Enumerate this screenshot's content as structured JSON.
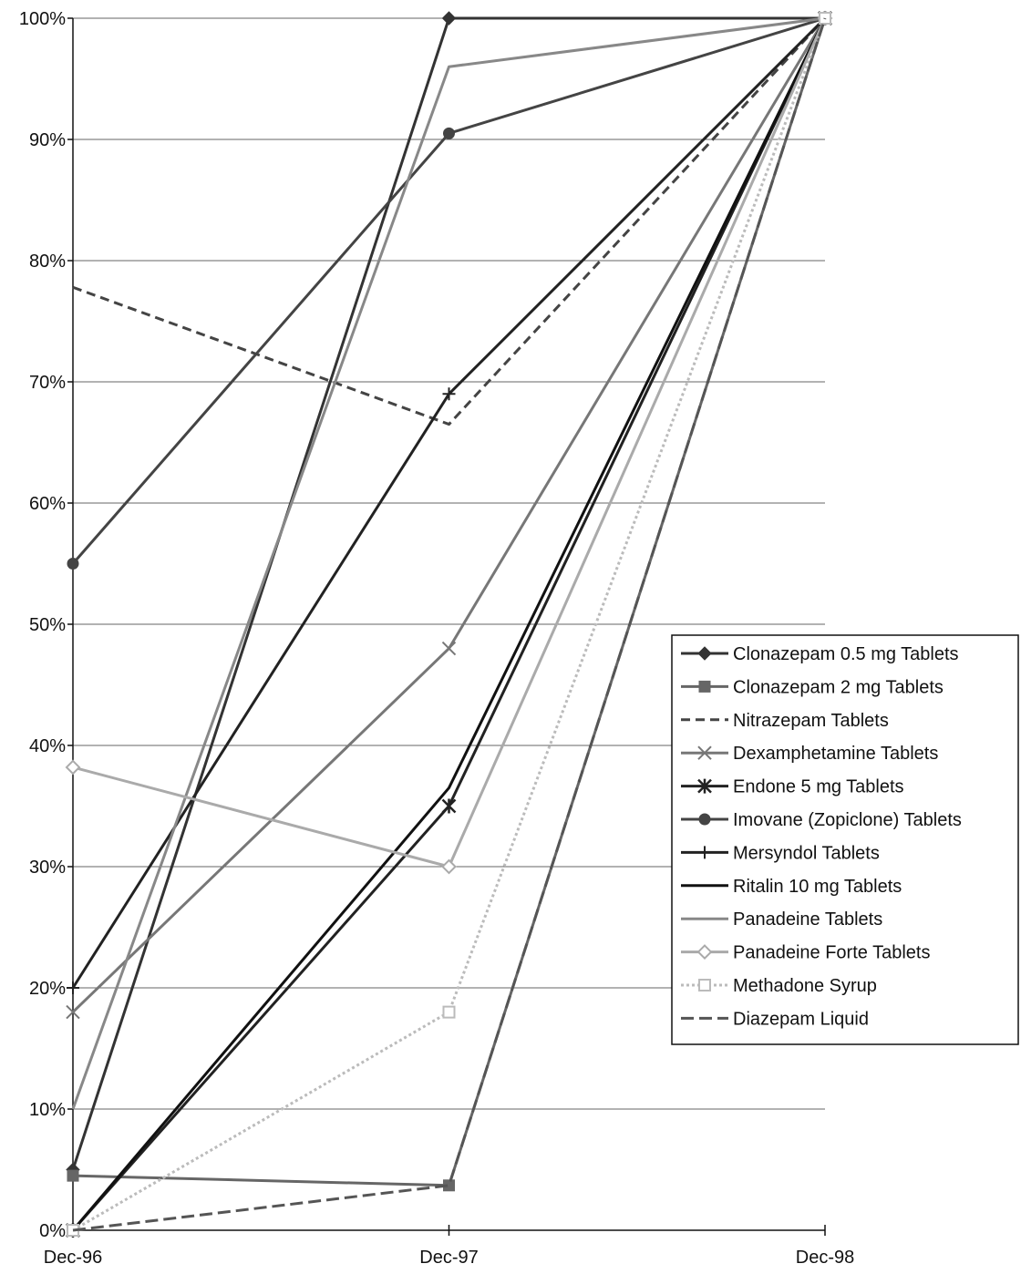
{
  "chart_data": {
    "type": "line",
    "title": "",
    "xlabel": "",
    "ylabel": "",
    "categories": [
      "Dec-96",
      "Dec-97",
      "Dec-98"
    ],
    "ylim": [
      0,
      100
    ],
    "yticks": [
      "0%",
      "10%",
      "20%",
      "30%",
      "40%",
      "50%",
      "60%",
      "70%",
      "80%",
      "90%",
      "100%"
    ],
    "grid": "horizontal",
    "legend_position": "right",
    "series": [
      {
        "name": "Clonazepam 0.5 mg Tablets",
        "values": [
          5,
          100,
          100
        ],
        "color": "#333333",
        "marker": "diamond"
      },
      {
        "name": "Clonazepam 2 mg Tablets",
        "values": [
          4.5,
          3.7,
          100
        ],
        "color": "#666666",
        "marker": "square"
      },
      {
        "name": "Nitrazepam Tablets",
        "values": [
          77.8,
          66.5,
          100
        ],
        "color": "#444444",
        "marker": "none",
        "dash": "10,6"
      },
      {
        "name": "Dexamphetamine Tablets",
        "values": [
          18,
          48,
          100
        ],
        "color": "#777777",
        "marker": "x"
      },
      {
        "name": "Endone 5 mg Tablets",
        "values": [
          0,
          35,
          100
        ],
        "color": "#222222",
        "marker": "star"
      },
      {
        "name": "Imovane (Zopiclone) Tablets",
        "values": [
          55,
          90.5,
          100
        ],
        "color": "#444444",
        "marker": "circle"
      },
      {
        "name": "Mersyndol Tablets",
        "values": [
          20,
          69,
          100
        ],
        "color": "#222222",
        "marker": "plus"
      },
      {
        "name": "Ritalin 10 mg Tablets",
        "values": [
          0,
          36.5,
          100
        ],
        "color": "#111111",
        "marker": "none"
      },
      {
        "name": "Panadeine Tablets",
        "values": [
          10,
          96,
          100
        ],
        "color": "#888888",
        "marker": "none"
      },
      {
        "name": "Panadeine Forte Tablets",
        "values": [
          38.2,
          30,
          100
        ],
        "color": "#aaaaaa",
        "marker": "diamond-open"
      },
      {
        "name": "Methadone Syrup",
        "values": [
          0,
          18,
          100
        ],
        "color": "#bbbbbb",
        "marker": "square-open",
        "dash": "3,3"
      },
      {
        "name": "Diazepam Liquid",
        "values": [
          0,
          3.7,
          100
        ],
        "color": "#555555",
        "marker": "none",
        "dash": "14,6"
      }
    ]
  }
}
